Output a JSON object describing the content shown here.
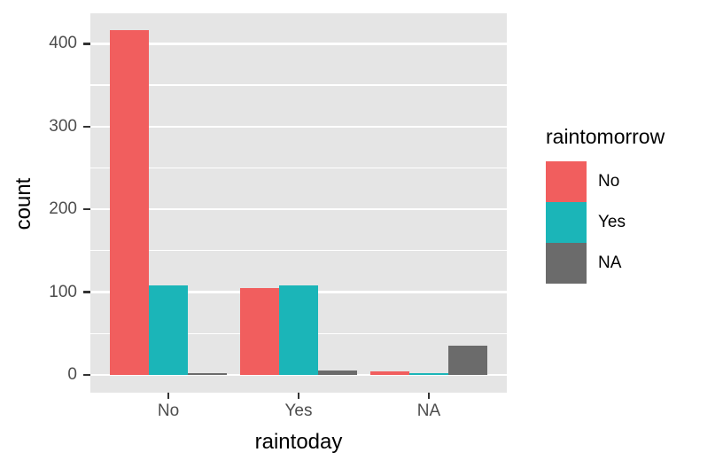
{
  "chart_data": {
    "type": "bar",
    "title": "",
    "xlabel": "raintoday",
    "ylabel": "count",
    "categories": [
      "No",
      "Yes",
      "NA"
    ],
    "series": [
      {
        "name": "No",
        "color": "#F15E5E",
        "values": [
          416,
          105,
          4
        ]
      },
      {
        "name": "Yes",
        "color": "#1BB5B8",
        "values": [
          108,
          108,
          2
        ]
      },
      {
        "name": "NA",
        "color": "#6B6B6B",
        "values": [
          2,
          5,
          35
        ]
      }
    ],
    "legend_title": "raintomorrow",
    "legend_position": "right",
    "y_ticks": [
      0,
      100,
      200,
      300,
      400
    ],
    "y_tick_labels": [
      "0",
      "100",
      "200",
      "300",
      "400"
    ],
    "y_minor_ticks": [
      50,
      150,
      250,
      350
    ],
    "ylim": [
      -21.4,
      436.8
    ],
    "grid": true,
    "panel_background": "#E5E5E5",
    "gridline_color": "#FFFFFF",
    "tick_color": "#333333",
    "tick_label_color": "#4D4D4D",
    "axis_title_color": "#000000"
  }
}
